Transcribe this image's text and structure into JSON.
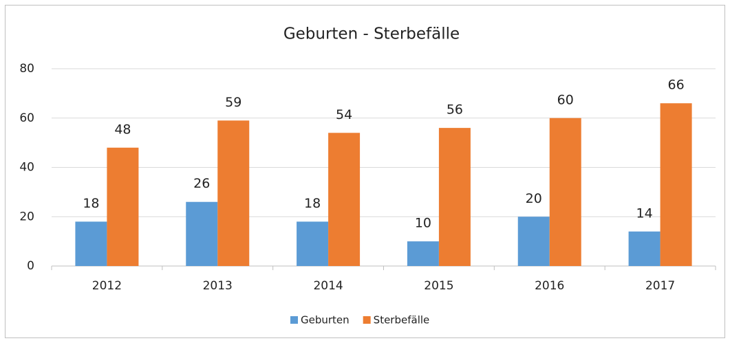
{
  "chart_data": {
    "type": "bar",
    "title": "Geburten - Sterbefälle",
    "categories": [
      "2012",
      "2013",
      "2014",
      "2015",
      "2016",
      "2017"
    ],
    "series": [
      {
        "name": "Geburten",
        "color": "#5b9bd5",
        "values": [
          18,
          26,
          18,
          10,
          20,
          14
        ]
      },
      {
        "name": "Sterbefälle",
        "color": "#ed7d31",
        "values": [
          48,
          59,
          54,
          56,
          60,
          66
        ]
      }
    ],
    "ylim": [
      0,
      80
    ],
    "yticks": [
      0,
      20,
      40,
      60,
      80
    ],
    "grid": true,
    "legend": "bottom"
  }
}
